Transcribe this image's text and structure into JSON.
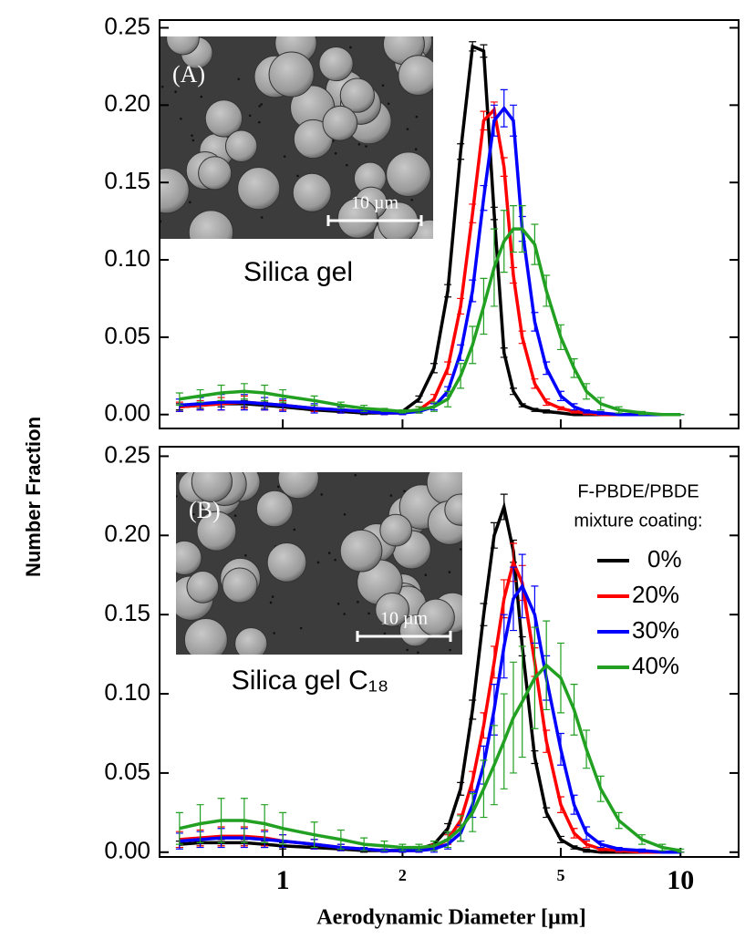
{
  "ylabel": "Number Fraction",
  "xlabel": "Aerodynamic Diameter [µm]",
  "chart_data": [
    {
      "type": "line",
      "panel": "(A)",
      "caption": "Silica gel",
      "scale_bar": "10 µm",
      "log_x": true,
      "xlim": [
        0.49,
        14
      ],
      "xticks": [
        1,
        2,
        5,
        10
      ],
      "show_xtick_labels": false,
      "ylim": [
        -0.009,
        0.255
      ],
      "yticks": [
        {
          "value": 0,
          "label": "0.00"
        },
        {
          "value": 0.05,
          "label": "0.05"
        },
        {
          "value": 0.1,
          "label": "0.10"
        },
        {
          "value": 0.15,
          "label": "0.15"
        },
        {
          "value": 0.2,
          "label": "0.20"
        },
        {
          "value": 0.25,
          "label": "0.25"
        }
      ],
      "x": [
        0.55,
        0.62,
        0.7,
        0.8,
        0.9,
        1.0,
        1.2,
        1.4,
        1.6,
        1.8,
        2.0,
        2.2,
        2.4,
        2.6,
        2.8,
        3.0,
        3.2,
        3.4,
        3.6,
        3.8,
        4.0,
        4.3,
        4.6,
        5.0,
        5.4,
        5.8,
        6.3,
        7.0,
        8.0,
        9.0,
        10.0
      ],
      "series": [
        {
          "name": "0%",
          "color": "#000000",
          "values": [
            0.005,
            0.006,
            0.007,
            0.007,
            0.006,
            0.005,
            0.003,
            0.002,
            0.001,
            0.001,
            0.002,
            0.01,
            0.03,
            0.08,
            0.17,
            0.238,
            0.235,
            0.13,
            0.04,
            0.015,
            0.006,
            0.003,
            0.002,
            0.001,
            0,
            0,
            0,
            0,
            0,
            0,
            0
          ],
          "errors": [
            0.002,
            0.002,
            0.002,
            0.002,
            0.002,
            0.002,
            0.001,
            0.001,
            0.001,
            0.001,
            0.001,
            0.002,
            0.003,
            0.004,
            0.005,
            0.003,
            0.004,
            0.004,
            0.003,
            0.002,
            0.001,
            0.001,
            0.001,
            0,
            0,
            0,
            0,
            0,
            0,
            0,
            0
          ]
        },
        {
          "name": "20%",
          "color": "#ff0000",
          "values": [
            0.005,
            0.006,
            0.007,
            0.008,
            0.007,
            0.006,
            0.004,
            0.003,
            0.002,
            0.001,
            0.001,
            0.003,
            0.01,
            0.03,
            0.07,
            0.13,
            0.19,
            0.197,
            0.16,
            0.09,
            0.05,
            0.02,
            0.008,
            0.004,
            0.002,
            0.001,
            0,
            0,
            0,
            0,
            0
          ],
          "errors": [
            0.003,
            0.003,
            0.004,
            0.004,
            0.004,
            0.003,
            0.002,
            0.002,
            0.001,
            0.001,
            0.001,
            0.002,
            0.003,
            0.004,
            0.005,
            0.006,
            0.006,
            0.005,
            0.006,
            0.005,
            0.004,
            0.003,
            0.002,
            0.001,
            0.001,
            0.001,
            0,
            0,
            0,
            0,
            0
          ]
        },
        {
          "name": "30%",
          "color": "#0000ff",
          "values": [
            0.006,
            0.007,
            0.008,
            0.008,
            0.007,
            0.006,
            0.004,
            0.003,
            0.002,
            0.001,
            0.001,
            0.002,
            0.005,
            0.015,
            0.04,
            0.08,
            0.14,
            0.19,
            0.198,
            0.19,
            0.12,
            0.06,
            0.03,
            0.012,
            0.005,
            0.002,
            0.001,
            0,
            0,
            0,
            0
          ],
          "errors": [
            0.004,
            0.004,
            0.005,
            0.005,
            0.004,
            0.004,
            0.003,
            0.002,
            0.001,
            0.001,
            0.001,
            0.001,
            0.002,
            0.003,
            0.005,
            0.007,
            0.008,
            0.01,
            0.012,
            0.01,
            0.008,
            0.006,
            0.004,
            0.003,
            0.002,
            0.001,
            0.001,
            0,
            0,
            0,
            0
          ]
        },
        {
          "name": "40%",
          "color": "#22a022",
          "values": [
            0.01,
            0.012,
            0.014,
            0.015,
            0.014,
            0.012,
            0.009,
            0.006,
            0.004,
            0.003,
            0.002,
            0.003,
            0.005,
            0.01,
            0.025,
            0.045,
            0.07,
            0.095,
            0.112,
            0.12,
            0.12,
            0.11,
            0.08,
            0.05,
            0.03,
            0.015,
            0.007,
            0.003,
            0.001,
            0,
            0
          ],
          "errors": [
            0.004,
            0.004,
            0.005,
            0.005,
            0.005,
            0.004,
            0.003,
            0.002,
            0.002,
            0.001,
            0.001,
            0.002,
            0.003,
            0.005,
            0.008,
            0.012,
            0.018,
            0.025,
            0.02,
            0.015,
            0.015,
            0.013,
            0.01,
            0.008,
            0.006,
            0.005,
            0.004,
            0.002,
            0.001,
            0,
            0
          ]
        }
      ]
    },
    {
      "type": "line",
      "panel": "(B)",
      "caption": "Silica gel C₁₈",
      "scale_bar": "10 µm",
      "log_x": true,
      "xlim": [
        0.49,
        14
      ],
      "xticks": [
        1,
        2,
        5,
        10
      ],
      "show_xtick_labels": true,
      "ylim": [
        -0.003,
        0.256
      ],
      "yticks": [
        {
          "value": 0,
          "label": "0.00"
        },
        {
          "value": 0.05,
          "label": "0.05"
        },
        {
          "value": 0.1,
          "label": "0.10"
        },
        {
          "value": 0.15,
          "label": "0.15"
        },
        {
          "value": 0.2,
          "label": "0.20"
        },
        {
          "value": 0.25,
          "label": "0.25"
        }
      ],
      "legend": "upper right",
      "legend_title": [
        "F-PBDE/PBDE",
        "mixture coating:"
      ],
      "x": [
        0.55,
        0.62,
        0.7,
        0.8,
        0.9,
        1.0,
        1.2,
        1.4,
        1.6,
        1.8,
        2.0,
        2.2,
        2.4,
        2.6,
        2.8,
        3.0,
        3.2,
        3.4,
        3.6,
        3.8,
        4.0,
        4.3,
        4.6,
        5.0,
        5.4,
        5.8,
        6.3,
        7.0,
        8.0,
        9.0,
        10.0
      ],
      "series": [
        {
          "name": "0%",
          "color": "#000000",
          "values": [
            0.005,
            0.006,
            0.006,
            0.006,
            0.005,
            0.004,
            0.003,
            0.002,
            0.001,
            0.001,
            0.001,
            0.002,
            0.005,
            0.015,
            0.04,
            0.09,
            0.15,
            0.2,
            0.218,
            0.19,
            0.13,
            0.06,
            0.025,
            0.008,
            0.003,
            0.001,
            0,
            0,
            0,
            0,
            0
          ],
          "errors": [
            0.002,
            0.002,
            0.002,
            0.002,
            0.002,
            0.002,
            0.001,
            0.001,
            0.001,
            0.001,
            0.001,
            0.001,
            0.002,
            0.003,
            0.004,
            0.006,
            0.007,
            0.008,
            0.008,
            0.007,
            0.006,
            0.004,
            0.003,
            0.002,
            0.001,
            0.001,
            0,
            0,
            0,
            0,
            0
          ]
        },
        {
          "name": "20%",
          "color": "#ff0000",
          "values": [
            0.008,
            0.009,
            0.01,
            0.01,
            0.009,
            0.007,
            0.005,
            0.003,
            0.002,
            0.001,
            0.001,
            0.001,
            0.003,
            0.008,
            0.02,
            0.045,
            0.08,
            0.12,
            0.16,
            0.183,
            0.17,
            0.12,
            0.07,
            0.03,
            0.012,
            0.005,
            0.002,
            0.001,
            0,
            0,
            0
          ],
          "errors": [
            0.005,
            0.005,
            0.006,
            0.006,
            0.005,
            0.004,
            0.003,
            0.002,
            0.001,
            0.001,
            0.001,
            0.001,
            0.002,
            0.003,
            0.004,
            0.006,
            0.008,
            0.01,
            0.012,
            0.012,
            0.011,
            0.009,
            0.007,
            0.005,
            0.003,
            0.002,
            0.001,
            0.001,
            0,
            0,
            0
          ]
        },
        {
          "name": "30%",
          "color": "#0000ff",
          "values": [
            0.007,
            0.008,
            0.009,
            0.009,
            0.008,
            0.007,
            0.005,
            0.003,
            0.002,
            0.001,
            0.001,
            0.001,
            0.002,
            0.005,
            0.012,
            0.03,
            0.055,
            0.09,
            0.13,
            0.16,
            0.168,
            0.15,
            0.11,
            0.065,
            0.03,
            0.012,
            0.005,
            0.002,
            0.001,
            0,
            0
          ],
          "errors": [
            0.005,
            0.005,
            0.006,
            0.006,
            0.005,
            0.004,
            0.003,
            0.002,
            0.001,
            0.001,
            0.001,
            0.001,
            0.002,
            0.003,
            0.005,
            0.008,
            0.012,
            0.016,
            0.02,
            0.02,
            0.02,
            0.018,
            0.014,
            0.01,
            0.006,
            0.004,
            0.002,
            0.001,
            0.001,
            0,
            0
          ]
        },
        {
          "name": "40%",
          "color": "#22a022",
          "values": [
            0.015,
            0.018,
            0.02,
            0.02,
            0.018,
            0.015,
            0.011,
            0.008,
            0.005,
            0.004,
            0.003,
            0.003,
            0.004,
            0.008,
            0.015,
            0.025,
            0.04,
            0.055,
            0.07,
            0.085,
            0.095,
            0.11,
            0.118,
            0.11,
            0.09,
            0.065,
            0.04,
            0.02,
            0.008,
            0.003,
            0.001
          ],
          "errors": [
            0.01,
            0.012,
            0.014,
            0.014,
            0.012,
            0.01,
            0.008,
            0.006,
            0.004,
            0.003,
            0.002,
            0.002,
            0.003,
            0.005,
            0.008,
            0.012,
            0.018,
            0.025,
            0.03,
            0.035,
            0.035,
            0.032,
            0.028,
            0.022,
            0.016,
            0.012,
            0.008,
            0.005,
            0.003,
            0.002,
            0.001
          ]
        }
      ]
    }
  ]
}
